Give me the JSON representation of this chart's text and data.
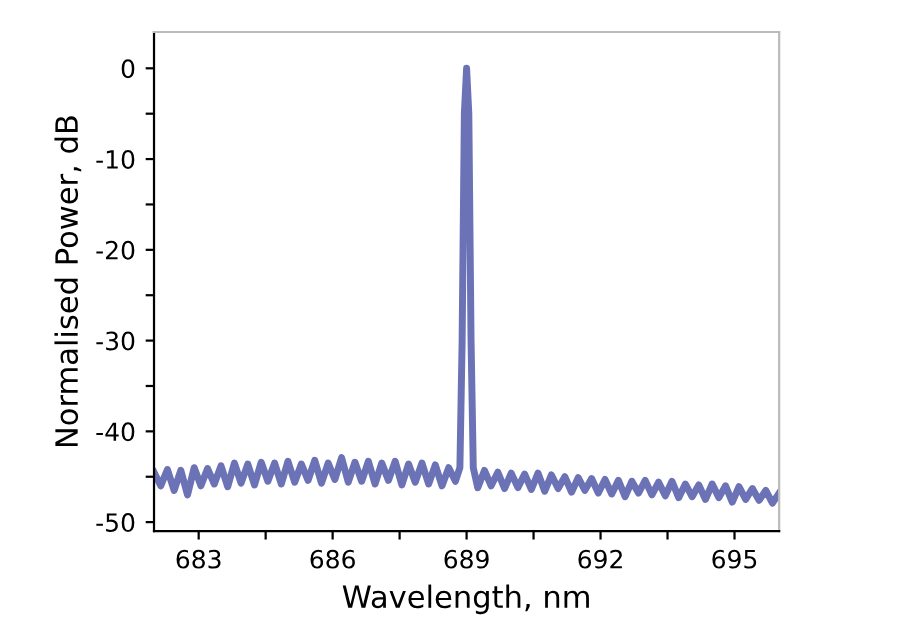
{
  "chart_data": {
    "type": "line",
    "xlabel": "Wavelength, nm",
    "ylabel": "Normalised Power, dB",
    "xlim": [
      682,
      696
    ],
    "ylim": [
      -51,
      4
    ],
    "xticks": [
      683,
      {
        "value": 684.5,
        "label": null
      },
      686,
      {
        "value": 687.5,
        "label": null
      },
      689,
      {
        "value": 690.5,
        "label": null
      },
      692,
      {
        "value": 693.5,
        "label": null
      },
      695
    ],
    "yticks": [
      {
        "value": -50,
        "label": "-50"
      },
      {
        "value": -45,
        "label": null
      },
      {
        "value": -40,
        "label": "-40"
      },
      {
        "value": -35,
        "label": null
      },
      {
        "value": -30,
        "label": "-30"
      },
      {
        "value": -25,
        "label": null
      },
      {
        "value": -20,
        "label": "-20"
      },
      {
        "value": -15,
        "label": null
      },
      {
        "value": -10,
        "label": "-10"
      },
      {
        "value": -5,
        "label": null
      },
      0
    ],
    "grid": false,
    "marker": "none",
    "line_style": "solid",
    "series": [
      {
        "color": "#6b72b5",
        "x": [
          682.0,
          682.15,
          682.3,
          682.45,
          682.6,
          682.75,
          682.9,
          683.05,
          683.2,
          683.35,
          683.5,
          683.65,
          683.8,
          683.95,
          684.1,
          684.25,
          684.4,
          684.55,
          684.7,
          684.85,
          685.0,
          685.15,
          685.3,
          685.45,
          685.6,
          685.75,
          685.9,
          686.05,
          686.2,
          686.35,
          686.5,
          686.65,
          686.8,
          686.95,
          687.1,
          687.25,
          687.4,
          687.55,
          687.7,
          687.85,
          688.0,
          688.15,
          688.3,
          688.45,
          688.6,
          688.75,
          688.85,
          688.9,
          688.95,
          689.0,
          689.05,
          689.1,
          689.15,
          689.25,
          689.4,
          689.55,
          689.7,
          689.85,
          690.0,
          690.15,
          690.3,
          690.45,
          690.6,
          690.75,
          690.9,
          691.05,
          691.2,
          691.35,
          691.5,
          691.65,
          691.8,
          691.95,
          692.1,
          692.25,
          692.4,
          692.55,
          692.7,
          692.85,
          693.0,
          693.15,
          693.3,
          693.45,
          693.6,
          693.75,
          693.9,
          694.05,
          694.2,
          694.35,
          694.5,
          694.65,
          694.8,
          694.95,
          695.1,
          695.25,
          695.4,
          695.55,
          695.7,
          695.85,
          696.0
        ],
        "values": [
          -44.5,
          -46.0,
          -44.2,
          -46.5,
          -44.3,
          -47.0,
          -44.0,
          -46.0,
          -44.1,
          -45.8,
          -43.8,
          -46.1,
          -43.5,
          -45.7,
          -43.6,
          -45.9,
          -43.4,
          -45.5,
          -43.5,
          -45.8,
          -43.3,
          -45.6,
          -43.6,
          -45.4,
          -43.2,
          -45.7,
          -43.5,
          -45.3,
          -42.9,
          -45.6,
          -43.4,
          -45.5,
          -43.3,
          -45.8,
          -43.5,
          -45.4,
          -43.3,
          -45.9,
          -43.6,
          -45.6,
          -43.5,
          -45.8,
          -43.7,
          -46.0,
          -44.0,
          -45.5,
          -44.0,
          -30.0,
          -5.0,
          0,
          -5.0,
          -30.0,
          -44.0,
          -46.2,
          -44.3,
          -46.0,
          -44.5,
          -46.3,
          -44.6,
          -46.2,
          -44.7,
          -46.4,
          -44.6,
          -46.6,
          -44.8,
          -46.3,
          -45.0,
          -46.7,
          -45.1,
          -46.5,
          -45.2,
          -46.8,
          -45.3,
          -46.9,
          -45.4,
          -47.2,
          -45.5,
          -46.8,
          -45.4,
          -47.0,
          -45.6,
          -47.1,
          -45.5,
          -47.3,
          -45.8,
          -47.2,
          -45.9,
          -47.5,
          -45.8,
          -47.3,
          -46.0,
          -47.8,
          -46.1,
          -47.5,
          -46.3,
          -47.6,
          -46.5,
          -47.9,
          -46.8
        ]
      }
    ]
  }
}
